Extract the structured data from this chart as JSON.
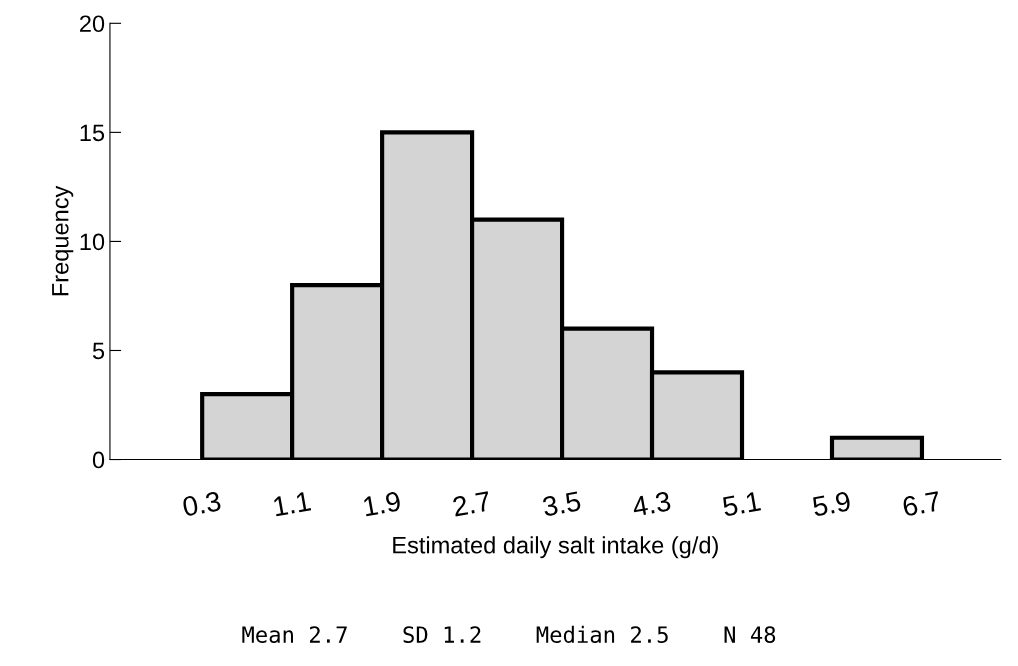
{
  "chart_data": {
    "type": "histogram",
    "xlabel": "Estimated daily salt intake (g/d)",
    "ylabel": "Frequency",
    "bins": [
      0.3,
      1.1,
      1.9,
      2.7,
      3.5,
      4.3,
      5.1,
      5.9,
      6.7
    ],
    "values": [
      3,
      8,
      15,
      11,
      6,
      4,
      0,
      1
    ],
    "color": "#d4d4d4",
    "xlim": [
      -0.52,
      7.4
    ],
    "xticks": [
      0.3,
      1.1,
      1.9,
      2.7,
      3.5,
      4.3,
      5.1,
      5.9,
      6.7
    ],
    "ylim": [
      0,
      20
    ],
    "yticks": [
      0,
      5,
      10,
      15,
      20
    ],
    "grid": false,
    "legend": false,
    "annotations": [
      "Mean 2.7    SD 1.2    Median 2.5    N 48"
    ]
  }
}
